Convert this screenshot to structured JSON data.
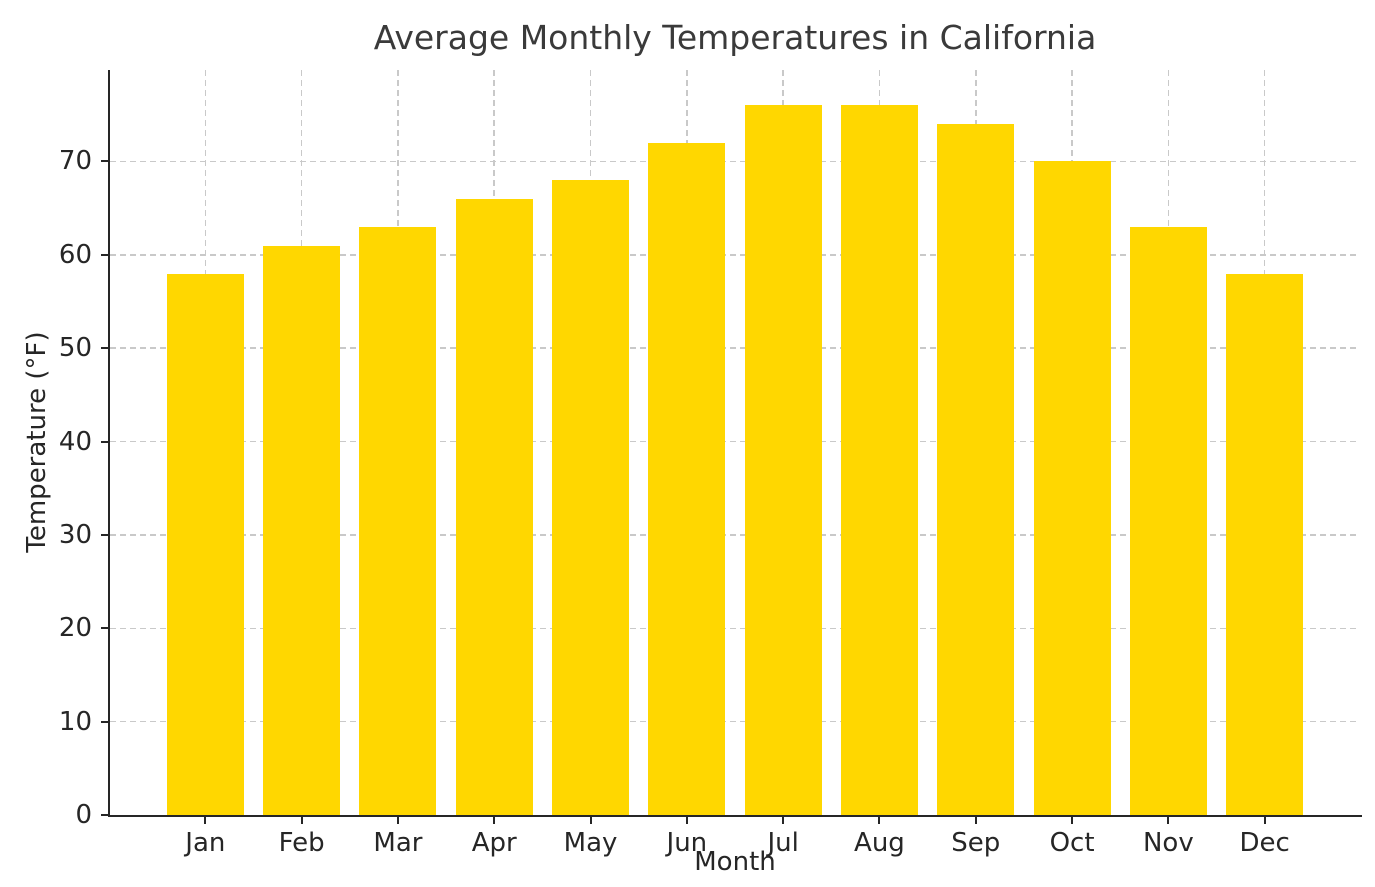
{
  "chart_data": {
    "type": "bar",
    "title": "Average Monthly Temperatures in California",
    "xlabel": "Month",
    "ylabel": "Temperature (°F)",
    "categories": [
      "Jan",
      "Feb",
      "Mar",
      "Apr",
      "May",
      "Jun",
      "Jul",
      "Aug",
      "Sep",
      "Oct",
      "Nov",
      "Dec"
    ],
    "values": [
      58,
      61,
      63,
      66,
      68,
      72,
      76,
      76,
      74,
      70,
      63,
      58
    ],
    "ylim": [
      0,
      79.8
    ],
    "yticks": [
      0,
      10,
      20,
      30,
      40,
      50,
      60,
      70
    ],
    "grid": "dashed-both-axes",
    "legend": "none",
    "colors": {
      "bar": "#FFD700",
      "grid": "#c9c9c9",
      "axis": "#262626",
      "tick_label": "#262626",
      "title": "#3a3a3a",
      "background": "#ffffff"
    }
  }
}
